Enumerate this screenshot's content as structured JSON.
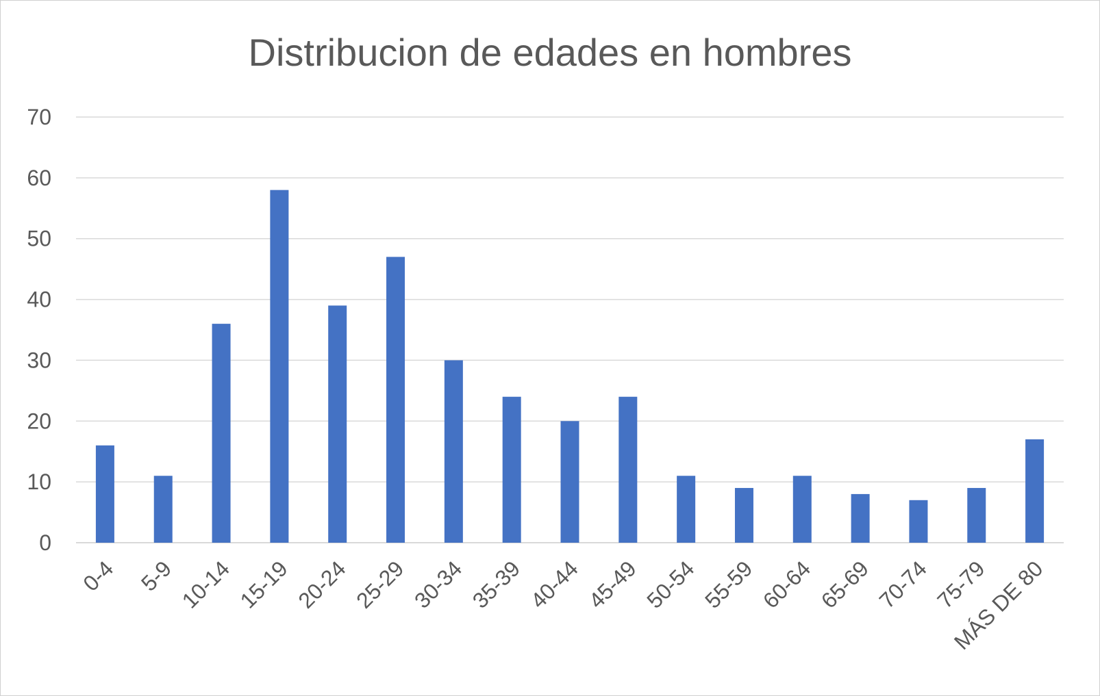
{
  "chart_data": {
    "type": "bar",
    "title": "Distribucion de edades en hombres",
    "xlabel": "",
    "ylabel": "",
    "categories": [
      "0-4",
      "5-9",
      "10-14",
      "15-19",
      "20-24",
      "25-29",
      "30-34",
      "35-39",
      "40-44",
      "45-49",
      "50-54",
      "55-59",
      "60-64",
      "65-69",
      "70-74",
      "75-79",
      "MÁS DE 80"
    ],
    "values": [
      16,
      11,
      36,
      58,
      39,
      47,
      30,
      24,
      20,
      24,
      11,
      9,
      11,
      8,
      7,
      9,
      17
    ],
    "ylim": [
      0,
      70
    ],
    "yticks": [
      0,
      10,
      20,
      30,
      40,
      50,
      60,
      70
    ],
    "grid": true,
    "legend": "none",
    "colors": {
      "bar": "#4472c4",
      "grid": "#d9d9d9",
      "text": "#595959"
    }
  }
}
